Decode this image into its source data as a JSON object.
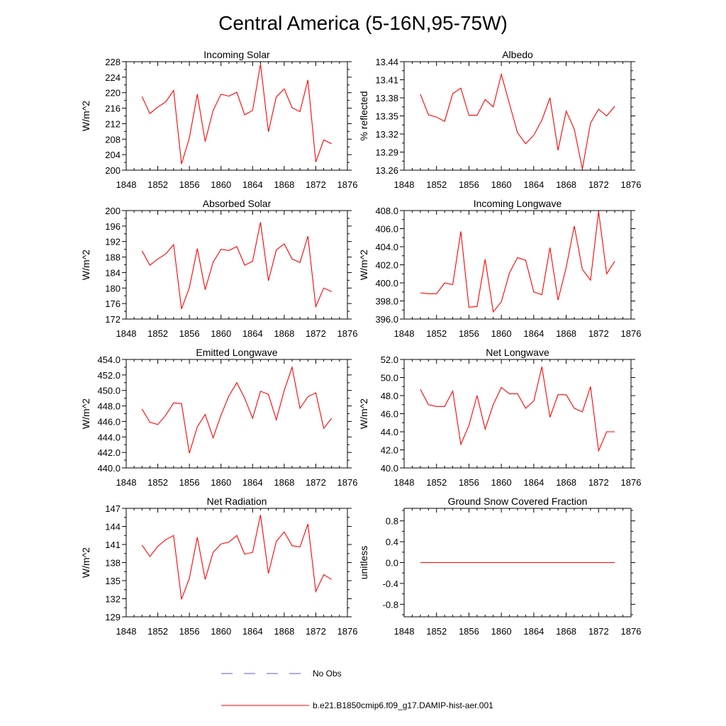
{
  "figure": {
    "title": "Central America (5-16N,95-75W)",
    "legend": [
      {
        "label": "No Obs",
        "color": "#5b5bd6",
        "dash": true
      },
      {
        "label": "b.e21.B1850cmip6.f09_g17.DAMIP-hist-aer.001",
        "color": "#ff0000",
        "dash": false
      }
    ]
  },
  "chart_data": [
    {
      "type": "line",
      "title": "Incoming Solar",
      "ylabel": "W/m^2",
      "xlim": [
        1848,
        1876
      ],
      "ylim": [
        200,
        228
      ],
      "xticks": [
        "1848",
        "1852",
        "1856",
        "1860",
        "1864",
        "1868",
        "1872",
        "1876"
      ],
      "yticks": [
        "200",
        "204",
        "208",
        "212",
        "216",
        "220",
        "224",
        "228"
      ],
      "series": [
        {
          "color": "#ff0000",
          "x": [
            1850,
            1851,
            1852,
            1853,
            1854,
            1855,
            1856,
            1857,
            1858,
            1859,
            1860,
            1861,
            1862,
            1863,
            1864,
            1865,
            1866,
            1867,
            1868,
            1869,
            1870,
            1871,
            1872,
            1873,
            1874
          ],
          "values": [
            219.0,
            214.6,
            216.3,
            217.6,
            220.6,
            201.6,
            208.3,
            219.6,
            207.4,
            215.4,
            219.6,
            219.1,
            220.1,
            214.3,
            215.4,
            227.4,
            209.9,
            218.9,
            221.0,
            216.1,
            215.1,
            223.3,
            202.1,
            207.8,
            206.8
          ]
        }
      ]
    },
    {
      "type": "line",
      "title": "Albedo",
      "ylabel": "% reflected",
      "xlim": [
        1848,
        1876
      ],
      "ylim": [
        13.26,
        13.44
      ],
      "xticks": [
        "1848",
        "1852",
        "1856",
        "1860",
        "1864",
        "1868",
        "1872",
        "1876"
      ],
      "yticks": [
        "13.26",
        "13.29",
        "13.32",
        "13.35",
        "13.38",
        "13.41",
        "13.44"
      ],
      "series": [
        {
          "color": "#ff0000",
          "x": [
            1850,
            1851,
            1852,
            1853,
            1854,
            1855,
            1856,
            1857,
            1858,
            1859,
            1860,
            1861,
            1862,
            1863,
            1864,
            1865,
            1866,
            1867,
            1868,
            1869,
            1870,
            1871,
            1872,
            1873,
            1874
          ],
          "values": [
            13.386,
            13.352,
            13.348,
            13.341,
            13.387,
            13.396,
            13.351,
            13.351,
            13.377,
            13.365,
            13.419,
            13.37,
            13.322,
            13.304,
            13.318,
            13.343,
            13.38,
            13.293,
            13.358,
            13.328,
            13.262,
            13.338,
            13.361,
            13.35,
            13.366
          ]
        }
      ]
    },
    {
      "type": "line",
      "title": "Absorbed Solar",
      "ylabel": "W/m^2",
      "xlim": [
        1848,
        1876
      ],
      "ylim": [
        172,
        200
      ],
      "xticks": [
        "1848",
        "1852",
        "1856",
        "1860",
        "1864",
        "1868",
        "1872",
        "1876"
      ],
      "yticks": [
        "172",
        "176",
        "180",
        "184",
        "188",
        "192",
        "196",
        "200"
      ],
      "series": [
        {
          "color": "#ff0000",
          "x": [
            1850,
            1851,
            1852,
            1853,
            1854,
            1855,
            1856,
            1857,
            1858,
            1859,
            1860,
            1861,
            1862,
            1863,
            1864,
            1865,
            1866,
            1867,
            1868,
            1869,
            1870,
            1871,
            1872,
            1873,
            1874
          ],
          "values": [
            189.6,
            185.9,
            187.5,
            188.8,
            191.2,
            174.6,
            180.1,
            190.2,
            179.6,
            186.7,
            190.0,
            189.7,
            190.7,
            185.9,
            186.9,
            197.0,
            181.9,
            189.8,
            191.4,
            187.5,
            186.6,
            193.4,
            175.2,
            180.0,
            179.1
          ]
        }
      ]
    },
    {
      "type": "line",
      "title": "Incoming Longwave",
      "ylabel": "W/m^2",
      "xlim": [
        1848,
        1876
      ],
      "ylim": [
        396.0,
        408.0
      ],
      "xticks": [
        "1848",
        "1852",
        "1856",
        "1860",
        "1864",
        "1868",
        "1872",
        "1876"
      ],
      "yticks": [
        "396.0",
        "398.0",
        "400.0",
        "402.0",
        "404.0",
        "406.0",
        "408.0"
      ],
      "series": [
        {
          "color": "#ff0000",
          "x": [
            1850,
            1851,
            1852,
            1853,
            1854,
            1855,
            1856,
            1857,
            1858,
            1859,
            1860,
            1861,
            1862,
            1863,
            1864,
            1865,
            1866,
            1867,
            1868,
            1869,
            1870,
            1871,
            1872,
            1873,
            1874
          ],
          "values": [
            398.9,
            398.8,
            398.8,
            400.0,
            399.8,
            405.7,
            397.3,
            397.4,
            402.6,
            396.8,
            397.9,
            401.1,
            402.8,
            402.5,
            399.0,
            398.7,
            403.9,
            398.1,
            401.7,
            406.3,
            401.5,
            400.3,
            407.9,
            401.0,
            402.4
          ]
        }
      ]
    },
    {
      "type": "line",
      "title": "Emitted Longwave",
      "ylabel": "W/m^2",
      "xlim": [
        1848,
        1876
      ],
      "ylim": [
        440.0,
        454.0
      ],
      "xticks": [
        "1848",
        "1852",
        "1856",
        "1860",
        "1864",
        "1868",
        "1872",
        "1876"
      ],
      "yticks": [
        "440.0",
        "442.0",
        "444.0",
        "446.0",
        "448.0",
        "450.0",
        "452.0",
        "454.0"
      ],
      "series": [
        {
          "color": "#ff0000",
          "x": [
            1850,
            1851,
            1852,
            1853,
            1854,
            1855,
            1856,
            1857,
            1858,
            1859,
            1860,
            1861,
            1862,
            1863,
            1864,
            1865,
            1866,
            1867,
            1868,
            1869,
            1870,
            1871,
            1872,
            1873,
            1874
          ],
          "values": [
            447.6,
            445.9,
            445.6,
            446.8,
            448.4,
            448.3,
            441.9,
            445.3,
            446.9,
            443.9,
            446.8,
            449.3,
            451.0,
            449.0,
            446.4,
            449.9,
            449.5,
            446.2,
            450.0,
            453.0,
            447.7,
            449.2,
            449.7,
            445.1,
            446.4
          ]
        }
      ]
    },
    {
      "type": "line",
      "title": "Net Longwave",
      "ylabel": "W/m^2",
      "xlim": [
        1848,
        1876
      ],
      "ylim": [
        40.0,
        52.0
      ],
      "xticks": [
        "1848",
        "1852",
        "1856",
        "1860",
        "1864",
        "1868",
        "1872",
        "1876"
      ],
      "yticks": [
        "40.0",
        "42.0",
        "44.0",
        "46.0",
        "48.0",
        "50.0",
        "52.0"
      ],
      "series": [
        {
          "color": "#ff0000",
          "x": [
            1850,
            1851,
            1852,
            1853,
            1854,
            1855,
            1856,
            1857,
            1858,
            1859,
            1860,
            1861,
            1862,
            1863,
            1864,
            1865,
            1866,
            1867,
            1868,
            1869,
            1870,
            1871,
            1872,
            1873,
            1874
          ],
          "values": [
            48.7,
            47.0,
            46.8,
            46.8,
            48.5,
            42.6,
            44.7,
            48.0,
            44.3,
            47.0,
            48.9,
            48.2,
            48.2,
            46.6,
            47.4,
            51.2,
            45.6,
            48.1,
            48.1,
            46.6,
            46.2,
            49.0,
            41.9,
            44.0,
            44.0
          ]
        }
      ]
    },
    {
      "type": "line",
      "title": "Net Radiation",
      "ylabel": "W/m^2",
      "xlim": [
        1848,
        1876
      ],
      "ylim": [
        129,
        147
      ],
      "xticks": [
        "1848",
        "1852",
        "1856",
        "1860",
        "1864",
        "1868",
        "1872",
        "1876"
      ],
      "yticks": [
        "129",
        "132",
        "135",
        "138",
        "141",
        "144",
        "147"
      ],
      "series": [
        {
          "color": "#ff0000",
          "x": [
            1850,
            1851,
            1852,
            1853,
            1854,
            1855,
            1856,
            1857,
            1858,
            1859,
            1860,
            1861,
            1862,
            1863,
            1864,
            1865,
            1866,
            1867,
            1868,
            1869,
            1870,
            1871,
            1872,
            1873,
            1874
          ],
          "values": [
            140.9,
            139.0,
            140.7,
            141.8,
            142.5,
            131.9,
            135.4,
            142.2,
            135.2,
            139.7,
            141.1,
            141.4,
            142.5,
            139.4,
            139.7,
            145.9,
            136.2,
            141.5,
            143.1,
            140.8,
            140.6,
            144.4,
            133.2,
            136.0,
            135.2
          ]
        }
      ]
    },
    {
      "type": "line",
      "title": "Ground Snow Covered Fraction",
      "ylabel": "unitless",
      "xlim": [
        1848,
        1876
      ],
      "ylim": [
        -1.04,
        1.04
      ],
      "xticks": [
        "1848",
        "1852",
        "1856",
        "1860",
        "1864",
        "1868",
        "1872",
        "1876"
      ],
      "yticks": [
        "-0.8",
        "-0.4",
        "0.0",
        "0.4",
        "0.8"
      ],
      "series": [
        {
          "color": "#ff0000",
          "x": [
            1850,
            1874
          ],
          "values": [
            0.0,
            0.0
          ]
        }
      ]
    }
  ]
}
